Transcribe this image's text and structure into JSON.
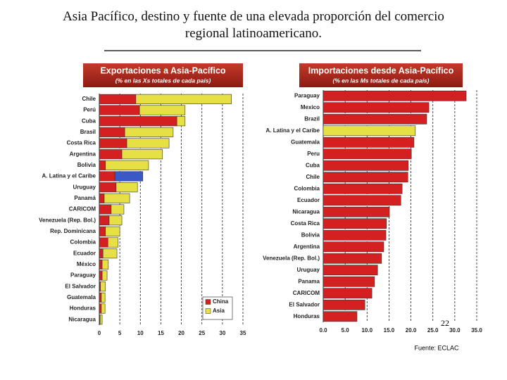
{
  "title": "Asia Pacífico, destino y fuente de una elevada proporción del comercio regional latinoamericano.",
  "page_number": "22",
  "source": "Fuente: ECLAC",
  "chart_data": [
    {
      "type": "bar",
      "orientation": "horizontal",
      "stacked": true,
      "title": "Exportaciones a Asia-Pacífico",
      "subtitle": "(% en las Xs totales de cada país)",
      "categories": [
        "Chile",
        "Perú",
        "Cuba",
        "Brasil",
        "Costa Rica",
        "Argentina",
        "Bolivia",
        "A. Latina y el Caribe",
        "Uruguay",
        "Panamá",
        "CARICOM",
        "Venezuela (Rep. Bol.)",
        "Rep. Dominicana",
        "Colombia",
        "Ecuador",
        "México",
        "Paraguay",
        "El Salvador",
        "Guatemala",
        "Honduras",
        "Nicaragua"
      ],
      "series": [
        {
          "name": "China",
          "color": "#d42020",
          "values": [
            8.9,
            9.8,
            18.9,
            6.2,
            6.7,
            5.5,
            1.5,
            3.8,
            4.1,
            1.2,
            2.9,
            2.4,
            1.5,
            2.1,
            0.9,
            0.7,
            0.7,
            0.3,
            0.5,
            0.5,
            0.2
          ]
        },
        {
          "name": "Asia",
          "color": "#e6e044",
          "values": [
            23.3,
            11.1,
            2.0,
            11.8,
            10.3,
            9.9,
            10.5,
            6.8,
            5.2,
            6.2,
            3.1,
            3.1,
            3.5,
            2.5,
            3.4,
            1.5,
            1.2,
            1.2,
            0.9,
            0.9,
            0.5
          ],
          "highlight": {
            "category": "A. Latina y el Caribe",
            "color": "#3a58c8"
          }
        }
      ],
      "xlim": [
        0,
        35
      ],
      "xticks": [
        0,
        5,
        10,
        15,
        20,
        25,
        30,
        35
      ],
      "grid": true,
      "legend": "lower right"
    },
    {
      "type": "bar",
      "orientation": "horizontal",
      "stacked": false,
      "title": "Importaciones desde Asia-Pacífico",
      "subtitle": "(% en las Ms totales de cada país)",
      "categories": [
        "Paraguay",
        "Mexico",
        "Brazil",
        "A. Latina y el Caribe",
        "Guatemala",
        "Peru",
        "Cuba",
        "Chile",
        "Colombia",
        "Ecuador",
        "Nicaragua",
        "Costa Rica",
        "Bolivia",
        "Argentina",
        "Venezuela (Rep. Bol.)",
        "Uruguay",
        "Panama",
        "CARICOM",
        "El Salvador",
        "Honduras"
      ],
      "series": [
        {
          "color": "#d42020",
          "values": [
            32.6,
            24.1,
            23.6,
            21.0,
            20.7,
            20.1,
            19.4,
            19.3,
            18.0,
            17.7,
            15.1,
            14.4,
            14.3,
            13.8,
            13.3,
            12.4,
            11.7,
            11.1,
            9.5,
            7.7
          ],
          "highlight": {
            "category": "A. Latina y el Caribe",
            "color": "#e6e044"
          }
        }
      ],
      "xlim": [
        0,
        35
      ],
      "xticks": [
        {
          "value": 0,
          "label": "0.0"
        },
        {
          "value": 5,
          "label": "5.0"
        },
        {
          "value": 10,
          "label": "10.0"
        },
        {
          "value": 15,
          "label": "15.0"
        },
        {
          "value": 20,
          "label": "20.0"
        },
        {
          "value": 25,
          "label": "25.0"
        },
        {
          "value": 30,
          "label": "30.0"
        },
        {
          "value": 35,
          "label": "35.0"
        }
      ],
      "grid": true
    }
  ]
}
